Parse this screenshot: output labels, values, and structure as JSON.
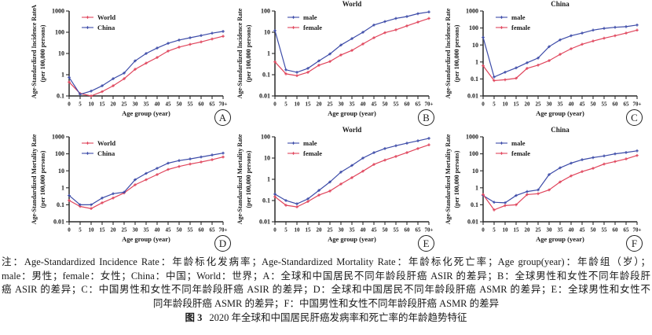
{
  "figure": {
    "note_lines": [
      "注：Age-Standardized Incidence Rate：年龄标化发病率；Age-Standardized Mortality Rate：年龄标化死亡率；Age group(year)：年龄组（岁）；",
      "male：男性；female：女性；China：中国；World：世界；A：全球和中国居民不同年龄段肝癌 ASIR 的差异；B：全球男性和女性不同年龄段肝",
      "癌 ASIR 的差异；C：中国男性和女性不同年龄段肝癌 ASIR 的差异；D：全球和中国居民不同年龄段肝癌 ASMR 的差异；E：全球男性和女性不",
      "同年龄段肝癌 ASMR 的差异；F：中国男性和女性不同年龄段肝癌 ASMR 的差异"
    ],
    "fig_label": "图 3",
    "fig_title": "2020 年全球和中国居民肝癌发病率和死亡率的年龄趋势特征"
  },
  "colors": {
    "red_series": "#e0455c",
    "blue_series": "#3c4ba8",
    "axis": "#2a2a2a"
  },
  "chart_data": [
    {
      "type": "line",
      "panel_label": "A",
      "corner_mark": "A",
      "title": "",
      "ylabel1": "Age-Standardized Incidence Rate",
      "ylabel2": "(per 100,000 persons)",
      "xlabel": "Age group (year)",
      "x_ticks": [
        "0",
        "5",
        "10",
        "15",
        "20",
        "25",
        "30",
        "35",
        "40",
        "45",
        "50",
        "55",
        "60",
        "65",
        "70+"
      ],
      "y_ticks": [
        "1000",
        "100",
        "10",
        "1",
        "0.1"
      ],
      "ylim": [
        0.1,
        1000
      ],
      "legend_position": "top-left",
      "series": [
        {
          "name": "World",
          "color": "#e0455c",
          "values": [
            0.45,
            0.13,
            0.1,
            0.16,
            0.3,
            0.65,
            1.8,
            3.5,
            6.5,
            13,
            20,
            27,
            35,
            48,
            65
          ]
        },
        {
          "name": "China",
          "color": "#3c4ba8",
          "values": [
            0.75,
            0.12,
            0.17,
            0.3,
            0.65,
            1.2,
            4.5,
            10,
            18,
            30,
            43,
            55,
            70,
            90,
            110
          ]
        }
      ]
    },
    {
      "type": "line",
      "panel_label": "B",
      "title": "World",
      "ylabel1": "Age-Standardized Incidence Rate",
      "ylabel2": "(per 100,000 persons)",
      "xlabel": "Age group (year)",
      "x_ticks": [
        "0",
        "5",
        "10",
        "15",
        "20",
        "25",
        "30",
        "35",
        "40",
        "45",
        "50",
        "55",
        "60",
        "65",
        "70+"
      ],
      "y_ticks": [
        "100",
        "10",
        "1",
        "0.1",
        "0.01"
      ],
      "ylim": [
        0.01,
        100
      ],
      "legend_position": "top-left",
      "series": [
        {
          "name": "male",
          "color": "#3c4ba8",
          "values": [
            12,
            0.17,
            0.13,
            0.2,
            0.45,
            0.95,
            2.5,
            5,
            10,
            22,
            32,
            45,
            55,
            75,
            90
          ]
        },
        {
          "name": "female",
          "color": "#e0455c",
          "values": [
            0.4,
            0.11,
            0.09,
            0.13,
            0.28,
            0.42,
            0.85,
            1.4,
            2.8,
            5.5,
            9.5,
            13,
            20,
            30,
            45
          ]
        }
      ]
    },
    {
      "type": "line",
      "panel_label": "C",
      "title": "China",
      "ylabel1": "Age-Standardized Incidence Rate",
      "ylabel2": "(per 100,000 persons)",
      "xlabel": "Age group (year)",
      "x_ticks": [
        "0",
        "5",
        "10",
        "15",
        "20",
        "25",
        "30",
        "35",
        "40",
        "45",
        "50",
        "55",
        "60",
        "65",
        "70+"
      ],
      "y_ticks": [
        "1000",
        "100",
        "10",
        "1",
        "0.1",
        "0.01"
      ],
      "ylim": [
        0.01,
        1000
      ],
      "legend_position": "top-left",
      "series": [
        {
          "name": "male",
          "color": "#3c4ba8",
          "values": [
            28,
            0.13,
            0.25,
            0.45,
            0.9,
            1.7,
            8,
            20,
            35,
            50,
            75,
            95,
            110,
            120,
            150
          ]
        },
        {
          "name": "female",
          "color": "#e0455c",
          "values": [
            0.6,
            0.08,
            0.09,
            0.11,
            0.42,
            0.65,
            1.2,
            2.8,
            6,
            11,
            17,
            25,
            35,
            50,
            75
          ]
        }
      ]
    },
    {
      "type": "line",
      "panel_label": "D",
      "title": "",
      "ylabel1": "Age-Standardized Mortality Rate",
      "ylabel2": "(per 100,000 persons)",
      "xlabel": "Age group (year)",
      "x_ticks": [
        "0",
        "5",
        "10",
        "15",
        "20",
        "25",
        "30",
        "35",
        "40",
        "45",
        "50",
        "55",
        "60",
        "65",
        "70+"
      ],
      "y_ticks": [
        "1000",
        "100",
        "10",
        "1",
        "0.1",
        "0.01"
      ],
      "ylim": [
        0.01,
        1000
      ],
      "legend_position": "top-left",
      "series": [
        {
          "name": "World",
          "color": "#e0455c",
          "values": [
            0.18,
            0.08,
            0.06,
            0.13,
            0.25,
            0.5,
            1.5,
            3,
            6,
            12,
            18,
            25,
            33,
            45,
            65
          ]
        },
        {
          "name": "China",
          "color": "#3c4ba8",
          "values": [
            0.35,
            0.1,
            0.1,
            0.25,
            0.45,
            0.55,
            3,
            7,
            14,
            28,
            40,
            50,
            65,
            85,
            110
          ]
        }
      ]
    },
    {
      "type": "line",
      "panel_label": "E",
      "title": "World",
      "ylabel1": "Age-Standardized Mortality Rate",
      "ylabel2": "(per 100,000 persons)",
      "xlabel": "Age group (year)",
      "x_ticks": [
        "0",
        "5",
        "10",
        "15",
        "20",
        "25",
        "30",
        "35",
        "40",
        "45",
        "50",
        "55",
        "60",
        "65",
        "70+"
      ],
      "y_ticks": [
        "100",
        "10",
        "1",
        "0.1",
        "0.01"
      ],
      "ylim": [
        0.01,
        100
      ],
      "legend_position": "top-left",
      "series": [
        {
          "name": "male",
          "color": "#3c4ba8",
          "values": [
            0.2,
            0.1,
            0.07,
            0.12,
            0.3,
            0.75,
            2.2,
            4.5,
            10,
            18,
            28,
            38,
            50,
            65,
            85
          ]
        },
        {
          "name": "female",
          "color": "#e0455c",
          "values": [
            0.15,
            0.06,
            0.05,
            0.09,
            0.18,
            0.28,
            0.6,
            1.2,
            2.4,
            5,
            8,
            12,
            18,
            28,
            42
          ]
        }
      ]
    },
    {
      "type": "line",
      "panel_label": "F",
      "title": "China",
      "ylabel1": "Age-Standardized Mortality Rate",
      "ylabel2": "(per 100,000 persons)",
      "xlabel": "Age group (year)",
      "x_ticks": [
        "0",
        "5",
        "10",
        "15",
        "20",
        "25",
        "30",
        "35",
        "40",
        "45",
        "50",
        "55",
        "60",
        "65",
        "70+"
      ],
      "y_ticks": [
        "1000",
        "100",
        "10",
        "1",
        "0.1",
        "0.01"
      ],
      "ylim": [
        0.01,
        1000
      ],
      "legend_position": "top-left",
      "series": [
        {
          "name": "male",
          "color": "#3c4ba8",
          "values": [
            0.35,
            0.14,
            0.13,
            0.35,
            0.6,
            0.75,
            6,
            15,
            28,
            45,
            60,
            75,
            100,
            120,
            150
          ]
        },
        {
          "name": "female",
          "color": "#e0455c",
          "values": [
            0.4,
            0.05,
            0.09,
            0.1,
            0.4,
            0.45,
            0.75,
            2.2,
            5,
            9,
            14,
            25,
            35,
            50,
            80
          ]
        }
      ]
    }
  ]
}
